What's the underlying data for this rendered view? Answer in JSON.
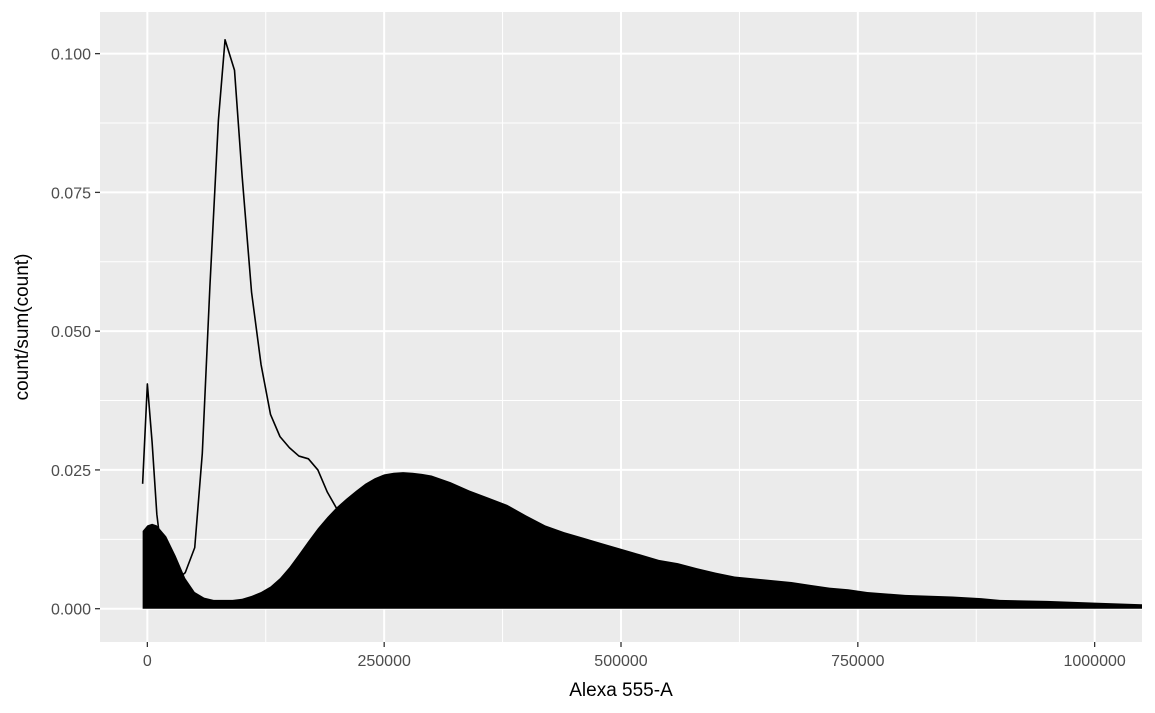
{
  "chart_data": {
    "type": "area",
    "title": "",
    "xlabel": "Alexa 555-A",
    "ylabel": "count/sum(count)",
    "xlim": [
      -50000,
      1050000
    ],
    "ylim": [
      -0.006,
      0.1075
    ],
    "x_ticks": [
      0,
      250000,
      500000,
      750000,
      1000000
    ],
    "x_tick_labels": [
      "0",
      "250000",
      "500000",
      "750000",
      "1000000"
    ],
    "y_ticks": [
      0,
      0.025,
      0.05,
      0.075,
      0.1
    ],
    "y_tick_labels": [
      "0.000",
      "0.025",
      "0.050",
      "0.075",
      "0.100"
    ],
    "grid": true,
    "background": "#ebebeb",
    "gridline_color": "#ffffff",
    "legend": "none",
    "series": [
      {
        "kind": "line",
        "color": "#000000",
        "x": [
          -5000,
          0,
          5000,
          10000,
          15000,
          22000,
          30000,
          40000,
          50000,
          58000,
          66000,
          75000,
          82000,
          92000,
          100000,
          110000,
          120000,
          130000,
          140000,
          150000,
          160000,
          170000,
          180000,
          190000,
          200000,
          210000
        ],
        "y": [
          0.0225,
          0.0405,
          0.03,
          0.017,
          0.01,
          0.006,
          0.005,
          0.0065,
          0.011,
          0.028,
          0.058,
          0.088,
          0.1025,
          0.097,
          0.078,
          0.057,
          0.044,
          0.035,
          0.031,
          0.029,
          0.0275,
          0.027,
          0.025,
          0.021,
          0.018,
          0.0165
        ]
      },
      {
        "kind": "area",
        "color": "#000000",
        "x": [
          -5000,
          0,
          5000,
          10000,
          20000,
          30000,
          40000,
          50000,
          60000,
          70000,
          80000,
          90000,
          100000,
          110000,
          120000,
          130000,
          140000,
          150000,
          160000,
          170000,
          180000,
          190000,
          200000,
          210000,
          220000,
          230000,
          240000,
          250000,
          260000,
          270000,
          280000,
          290000,
          300000,
          320000,
          340000,
          360000,
          380000,
          400000,
          420000,
          440000,
          460000,
          480000,
          500000,
          520000,
          540000,
          560000,
          580000,
          600000,
          620000,
          650000,
          680000,
          700000,
          720000,
          740000,
          760000,
          800000,
          850000,
          880000,
          900000,
          950000,
          1000000,
          1050000
        ],
        "y": [
          0.014,
          0.015,
          0.0153,
          0.015,
          0.013,
          0.0095,
          0.0055,
          0.003,
          0.002,
          0.0016,
          0.0016,
          0.0016,
          0.0018,
          0.0023,
          0.003,
          0.004,
          0.0055,
          0.0075,
          0.0098,
          0.0122,
          0.0145,
          0.0165,
          0.0183,
          0.0198,
          0.0212,
          0.0225,
          0.0235,
          0.0242,
          0.0245,
          0.0246,
          0.0245,
          0.0243,
          0.024,
          0.0228,
          0.0213,
          0.02,
          0.0187,
          0.0168,
          0.015,
          0.0138,
          0.0128,
          0.0118,
          0.0108,
          0.0098,
          0.0088,
          0.0082,
          0.0073,
          0.0065,
          0.0058,
          0.0053,
          0.0048,
          0.0043,
          0.0038,
          0.0035,
          0.003,
          0.0025,
          0.0022,
          0.0019,
          0.0016,
          0.0014,
          0.0011,
          0.0008
        ]
      }
    ]
  }
}
